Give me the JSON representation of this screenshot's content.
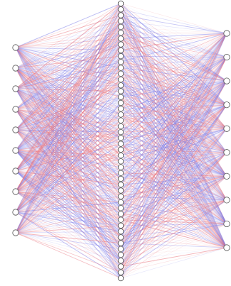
{
  "diagram": {
    "type": "fully-connected neural network",
    "layers": [
      {
        "role": "input",
        "neurons": 10
      },
      {
        "role": "hidden",
        "neurons": 48
      },
      {
        "role": "output",
        "neurons": 10
      }
    ],
    "edge_colors": {
      "positive": "#e8707a",
      "negative": "#7a7ae8"
    },
    "node_fill": "#ffffff",
    "node_stroke": "#555555",
    "background": "#ffffff"
  }
}
